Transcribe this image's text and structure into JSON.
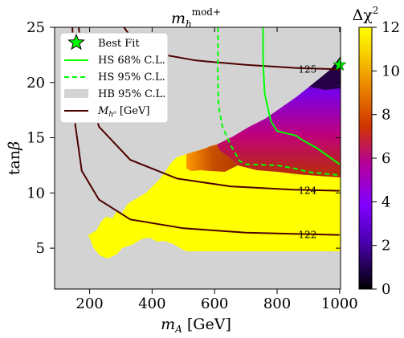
{
  "chart_data": {
    "type": "heatmap",
    "title": {
      "main": "m",
      "sub": "h",
      "sup": "mod+"
    },
    "xlabel": {
      "main": "m",
      "sub": "A",
      "suffix": " [GeV]"
    },
    "ylabel": {
      "main": "tan",
      "greek": "β"
    },
    "xlim": [
      88,
      1003
    ],
    "ylim": [
      1.3,
      25
    ],
    "xticks": [
      200,
      400,
      600,
      800,
      1000
    ],
    "yticks": [
      5,
      10,
      15,
      20,
      25
    ],
    "colorbar": {
      "label": {
        "main": "Δχ",
        "sup": "2"
      },
      "range": [
        0,
        12
      ],
      "ticks": [
        0,
        2,
        4,
        6,
        8,
        10,
        12
      ],
      "colormap": "gnuplot"
    },
    "excluded_region_color": "#d3d3d3",
    "allowed_region_color": "#ffff00",
    "best_fit": {
      "x": 1000,
      "y": 21.6
    },
    "legend": {
      "position": "top-left",
      "entries": [
        {
          "label": "Best Fit",
          "style": "star",
          "color": "#00ff00"
        },
        {
          "label": "HS 68% C.L.",
          "style": "solid",
          "color": "#00ff00"
        },
        {
          "label": "HS 95% C.L.",
          "style": "dashed",
          "color": "#00ff00"
        },
        {
          "label": "HB 95% C.L.",
          "style": "patch",
          "color": "#d3d3d3"
        },
        {
          "label_main": "M",
          "label_sub": "h⁰",
          "label_suffix": " [GeV]",
          "style": "solid",
          "color": "#4d0000"
        }
      ]
    },
    "mass_contours": [
      {
        "label": "122",
        "points": [
          [
            145,
            25
          ],
          [
            150,
            17
          ],
          [
            175,
            12
          ],
          [
            230,
            9.4
          ],
          [
            330,
            7.6
          ],
          [
            500,
            6.8
          ],
          [
            700,
            6.4
          ],
          [
            850,
            6.3
          ],
          [
            1000,
            6.2
          ]
        ]
      },
      {
        "label": "124",
        "points": [
          [
            165,
            25
          ],
          [
            180,
            21
          ],
          [
            230,
            16
          ],
          [
            330,
            13
          ],
          [
            480,
            11.3
          ],
          [
            650,
            10.6
          ],
          [
            850,
            10.3
          ],
          [
            1000,
            10.2
          ]
        ]
      },
      {
        "label": "125",
        "points": [
          [
            310,
            25
          ],
          [
            340,
            23.8
          ],
          [
            420,
            22.6
          ],
          [
            540,
            22
          ],
          [
            700,
            21.6
          ],
          [
            870,
            21.3
          ],
          [
            1000,
            21.2
          ]
        ]
      }
    ],
    "hs68_contour": [
      [
        755,
        25
      ],
      [
        755,
        22
      ],
      [
        760,
        19
      ],
      [
        780,
        16.5
      ],
      [
        800,
        15.6
      ],
      [
        860,
        15.2
      ],
      [
        880,
        14.8
      ],
      [
        925,
        14.1
      ],
      [
        1000,
        12.6
      ]
    ],
    "hs95_contour": [
      [
        611,
        25
      ],
      [
        610,
        21
      ],
      [
        612,
        18
      ],
      [
        625,
        16
      ],
      [
        652,
        14.3
      ],
      [
        680,
        12.9
      ],
      [
        700,
        12.6
      ],
      [
        800,
        12.5
      ],
      [
        860,
        12.2
      ],
      [
        900,
        11.9
      ],
      [
        1000,
        11.6
      ]
    ]
  }
}
